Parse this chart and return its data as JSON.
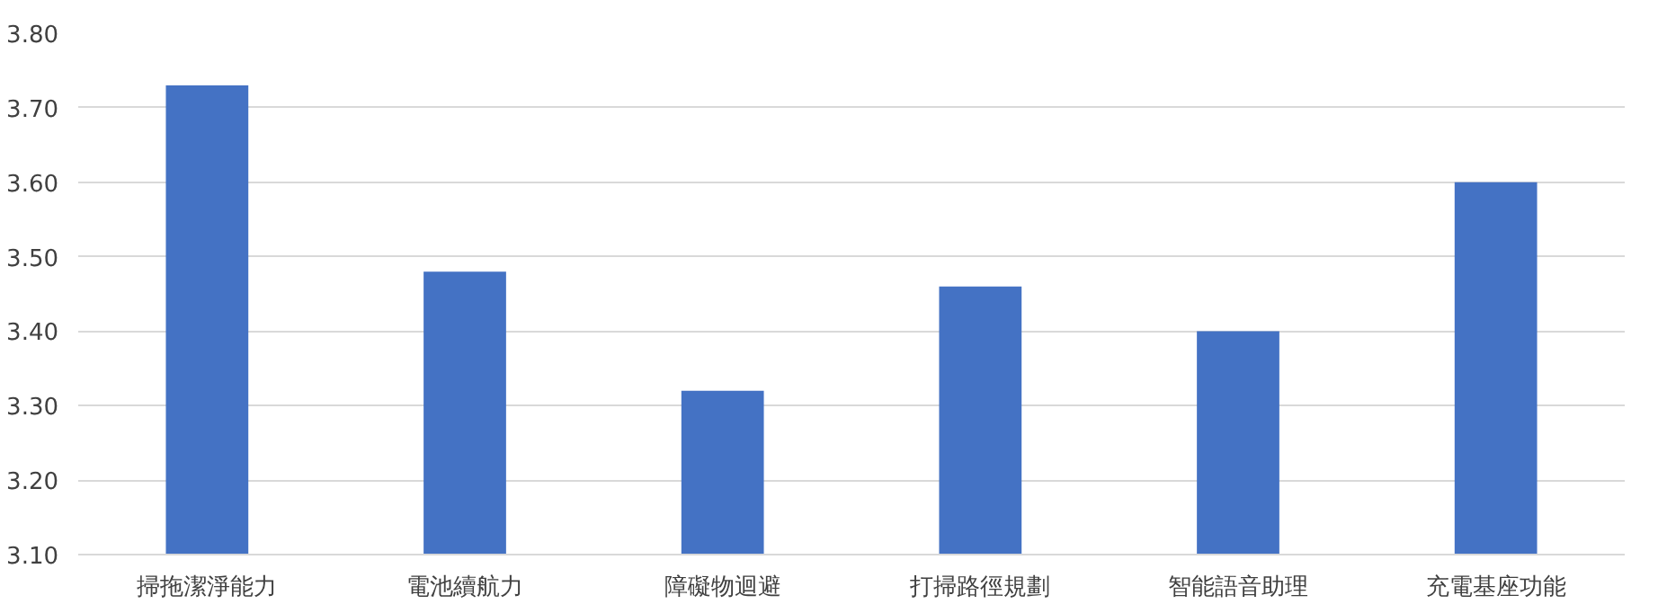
{
  "chart_data": {
    "type": "bar",
    "categories": [
      "掃拖潔淨能力",
      "電池續航力",
      "障礙物迴避",
      "打掃路徑規劃",
      "智能語音助理",
      "充電基座功能"
    ],
    "values": [
      3.73,
      3.48,
      3.32,
      3.46,
      3.4,
      3.6
    ],
    "color": "#4472c4",
    "ylim": [
      3.1,
      3.8
    ],
    "yticks": [
      {
        "value": 3.1,
        "label": "3.10"
      },
      {
        "value": 3.2,
        "label": "3.20"
      },
      {
        "value": 3.3,
        "label": "3.30"
      },
      {
        "value": 3.4,
        "label": "3.40"
      },
      {
        "value": 3.5,
        "label": "3.50"
      },
      {
        "value": 3.6,
        "label": "3.60"
      },
      {
        "value": 3.7,
        "label": "3.70"
      },
      {
        "value": 3.8,
        "label": "3.80"
      }
    ],
    "grid": "y"
  }
}
